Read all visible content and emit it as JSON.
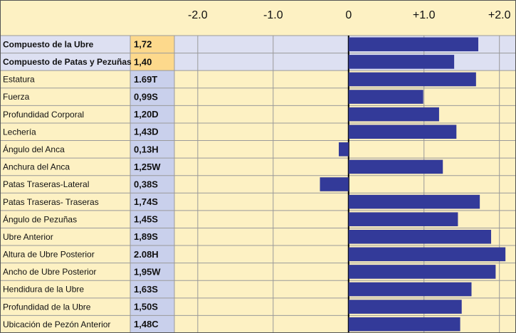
{
  "chart_data": {
    "type": "bar",
    "orientation": "horizontal",
    "categories": [
      "Compuesto de la Ubre",
      "Compuesto de Patas y Pezuñas",
      "Estatura",
      "Fuerza",
      "Profundidad Corporal",
      "Lechería",
      "Ángulo del Anca",
      "Anchura del Anca",
      "Patas Traseras-Lateral",
      "Patas Traseras- Traseras",
      "Ángulo de Pezuñas",
      "Ubre Anterior",
      "Altura de Ubre Posterior",
      "Ancho de Ubre Posterior",
      "Hendidura de la Ubre",
      "Profundidad de la Ubre",
      "Ubicación de Pezón Anterior"
    ],
    "values": [
      1.72,
      1.4,
      1.69,
      0.99,
      1.2,
      1.43,
      -0.13,
      1.25,
      -0.38,
      1.74,
      1.45,
      1.89,
      2.08,
      1.95,
      1.63,
      1.5,
      1.48
    ],
    "value_labels": [
      "1,72",
      "1,40",
      "1.69T",
      "0,99S",
      "1,20D",
      "1,43D",
      "0,13H",
      "1,25W",
      "0,38S",
      "1,74S",
      "1,45S",
      "1,89S",
      "2.08H",
      "1,95W",
      "1,63S",
      "1,50S",
      "1,48C"
    ],
    "color": "#333a99",
    "xlim": [
      -2.31,
      2.22
    ],
    "xticks": [
      {
        "value": -2,
        "label": "-2.0"
      },
      {
        "value": -1,
        "label": "-1.0"
      },
      0,
      {
        "value": 1,
        "label": "+1.0"
      },
      {
        "value": 2,
        "label": "+2.0"
      }
    ],
    "grid": true
  }
}
